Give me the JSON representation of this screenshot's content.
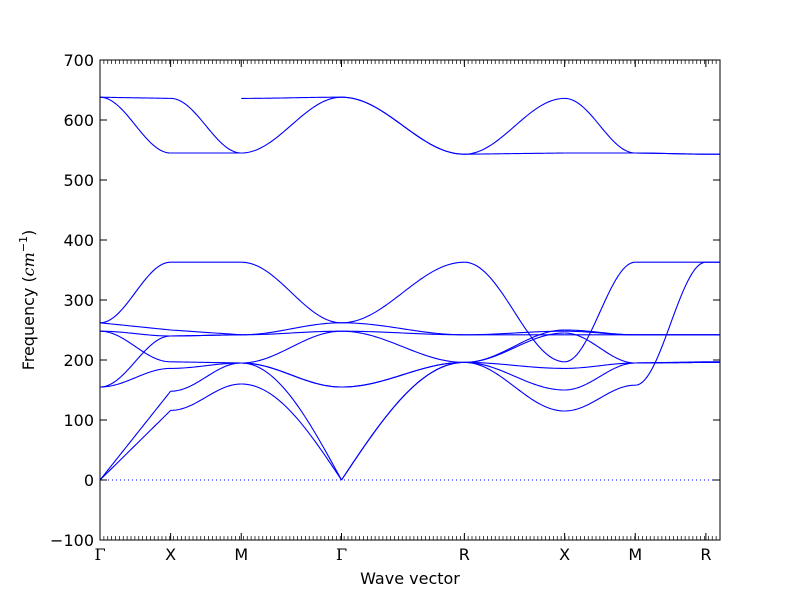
{
  "chart_data": {
    "type": "line",
    "xlabel": "Wave vector",
    "ylabel_prefix": "Frequency (",
    "ylabel_unit_base": "cm",
    "ylabel_unit_exp": "−1",
    "ylabel_suffix": ")",
    "ylim": [
      -100,
      700
    ],
    "yticks": [
      -100,
      0,
      100,
      200,
      300,
      400,
      500,
      600,
      700
    ],
    "xlim": [
      0,
      4.39
    ],
    "high_symmetry_points": [
      {
        "label": "Γ",
        "x": 0
      },
      {
        "label": "X",
        "x": 0.5
      },
      {
        "label": "M",
        "x": 1.0
      },
      {
        "label": "Γ",
        "x": 1.71
      },
      {
        "label": "R",
        "x": 2.58
      },
      {
        "label": "X",
        "x": 3.29
      },
      {
        "label": "M",
        "x": 3.79
      },
      {
        "label": "R",
        "x": 4.29
      }
    ],
    "line_color": "#0000ff",
    "zero_line_color": "#0000ff",
    "segments": [
      {
        "x0": 0,
        "x1": 0.5,
        "bands": [
          [
            0,
            148
          ],
          [
            0,
            116
          ],
          [
            155,
            186,
            "s"
          ],
          [
            155,
            240,
            "s"
          ],
          [
            248,
            197,
            "s"
          ],
          [
            248,
            240,
            "s"
          ],
          [
            262,
            250
          ],
          [
            262,
            363,
            "s"
          ],
          [
            638,
            545,
            "s"
          ],
          [
            638,
            636
          ]
        ]
      },
      {
        "x0": 0.5,
        "x1": 1.0,
        "bands": [
          [
            148,
            195,
            "s"
          ],
          [
            116,
            160,
            "s"
          ],
          [
            186,
            195,
            "s"
          ],
          [
            240,
            242,
            "s"
          ],
          [
            197,
            195
          ],
          [
            240,
            242
          ],
          [
            250,
            242
          ],
          [
            363,
            363
          ],
          [
            545,
            545
          ],
          [
            636,
            545,
            "s"
          ]
        ]
      },
      {
        "x0": 1.0,
        "x1": 1.71,
        "bands": [
          [
            195,
            0,
            "c"
          ],
          [
            160,
            0,
            "c"
          ],
          [
            195,
            155,
            "s"
          ],
          [
            195,
            248,
            "s"
          ],
          [
            195,
            155,
            "s"
          ],
          [
            242,
            248,
            "s"
          ],
          [
            242,
            262,
            "s"
          ],
          [
            363,
            262,
            "s"
          ],
          [
            545,
            638,
            "s"
          ],
          [
            636,
            638,
            "s"
          ]
        ]
      },
      {
        "x0": 1.71,
        "x1": 2.58,
        "bands": [
          [
            0,
            196,
            "a"
          ],
          [
            0,
            196,
            "a"
          ],
          [
            155,
            196,
            "s"
          ],
          [
            248,
            196,
            "s"
          ],
          [
            155,
            196,
            "s"
          ],
          [
            248,
            242,
            "s"
          ],
          [
            262,
            242,
            "s"
          ],
          [
            262,
            363,
            "s"
          ],
          [
            638,
            543,
            "s"
          ],
          [
            638,
            543,
            "s"
          ]
        ]
      },
      {
        "x0": 2.58,
        "x1": 3.29,
        "bands": [
          [
            196,
            150,
            "s"
          ],
          [
            196,
            115,
            "s"
          ],
          [
            196,
            186,
            "s"
          ],
          [
            196,
            245,
            "s"
          ],
          [
            196,
            250,
            "s"
          ],
          [
            242,
            242
          ],
          [
            242,
            248,
            "s"
          ],
          [
            363,
            197,
            "s"
          ],
          [
            543,
            545
          ],
          [
            543,
            636,
            "s"
          ]
        ]
      },
      {
        "x0": 3.29,
        "x1": 3.79,
        "bands": [
          [
            150,
            195,
            "s"
          ],
          [
            115,
            158,
            "s"
          ],
          [
            186,
            195,
            "s"
          ],
          [
            245,
            195,
            "s"
          ],
          [
            250,
            242,
            "s"
          ],
          [
            242,
            242
          ],
          [
            248,
            242,
            "s"
          ],
          [
            197,
            363,
            "s"
          ],
          [
            545,
            545
          ],
          [
            636,
            545,
            "s"
          ]
        ]
      },
      {
        "x0": 3.79,
        "x1": 4.29,
        "bands": [
          [
            195,
            196
          ],
          [
            158,
            363,
            "s"
          ],
          [
            195,
            196
          ],
          [
            195,
            197
          ],
          [
            242,
            242
          ],
          [
            242,
            242
          ],
          [
            242,
            242
          ],
          [
            363,
            363
          ],
          [
            545,
            543
          ],
          [
            545,
            543,
            "s"
          ]
        ]
      },
      {
        "x0": 4.29,
        "x1": 4.39,
        "bands": [
          [
            196,
            196
          ],
          [
            363,
            363
          ],
          [
            196,
            196
          ],
          [
            197,
            197
          ],
          [
            242,
            242
          ],
          [
            242,
            242
          ],
          [
            242,
            242
          ],
          [
            363,
            363
          ],
          [
            543,
            543
          ],
          [
            543,
            543
          ]
        ]
      }
    ]
  }
}
